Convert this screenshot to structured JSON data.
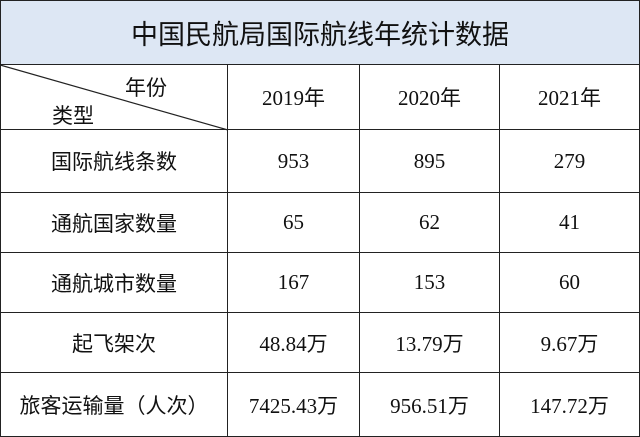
{
  "title": "中国民航局国际航线年统计数据",
  "table": {
    "corner_top": "年份",
    "corner_bottom": "类型",
    "columns": [
      "2019年",
      "2020年",
      "2021年"
    ],
    "rows": [
      [
        "国际航线条数",
        "953",
        "895",
        "279"
      ],
      [
        "通航国家数量",
        "65",
        "62",
        "41"
      ],
      [
        "通航城市数量",
        "167",
        "153",
        "60"
      ],
      [
        "起飞架次",
        "48.84万",
        "13.79万",
        "9.67万"
      ],
      [
        "旅客运输量（人次）",
        "7425.43万",
        "956.51万",
        "147.72万"
      ]
    ]
  }
}
